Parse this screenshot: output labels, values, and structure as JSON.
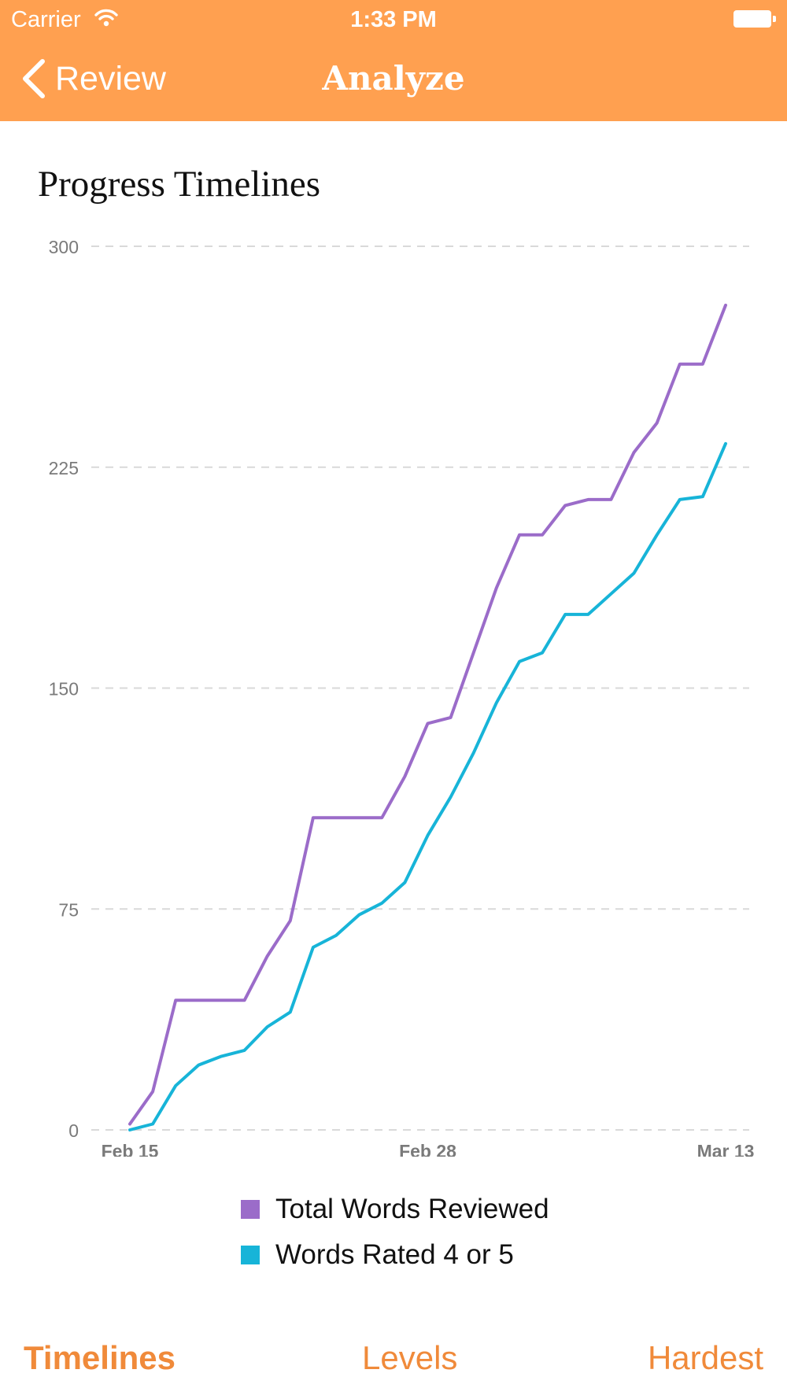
{
  "status_bar": {
    "carrier": "Carrier",
    "time": "1:33 PM"
  },
  "nav": {
    "back_label": "Review",
    "title": "Analyze"
  },
  "section_title": "Progress Timelines",
  "colors": {
    "header_bg": "#ffa050",
    "accent": "#f08a3a",
    "series_total": "#9b6cc9",
    "series_rated": "#17b4d8",
    "grid": "#d9d9d9",
    "axis_text": "#7a7a7a"
  },
  "chart_data": {
    "type": "line",
    "title": "",
    "xlabel": "",
    "ylabel": "",
    "x": [
      "Feb 15",
      "Feb 16",
      "Feb 17",
      "Feb 18",
      "Feb 19",
      "Feb 20",
      "Feb 21",
      "Feb 22",
      "Feb 23",
      "Feb 24",
      "Feb 25",
      "Feb 26",
      "Feb 27",
      "Feb 28",
      "Mar 1",
      "Mar 2",
      "Mar 3",
      "Mar 4",
      "Mar 5",
      "Mar 6",
      "Mar 7",
      "Mar 8",
      "Mar 9",
      "Mar 10",
      "Mar 11",
      "Mar 12",
      "Mar 13"
    ],
    "x_tick_labels": [
      "Feb 15",
      "Feb 28",
      "Mar 13"
    ],
    "y_ticks": [
      "0",
      "75",
      "150",
      "225",
      "300"
    ],
    "ylim": [
      0,
      300
    ],
    "grid": true,
    "legend_placement": "bottom",
    "series": [
      {
        "name": "Total Words Reviewed",
        "values": [
          2,
          13,
          44,
          44,
          44,
          44,
          59,
          71,
          106,
          106,
          106,
          106,
          120,
          138,
          140,
          162,
          184,
          202,
          202,
          212,
          214,
          214,
          230,
          240,
          260,
          260,
          280
        ]
      },
      {
        "name": "Words Rated 4 or 5",
        "values": [
          0,
          2,
          15,
          22,
          25,
          27,
          35,
          40,
          62,
          66,
          73,
          77,
          84,
          100,
          113,
          128,
          145,
          159,
          162,
          175,
          175,
          182,
          189,
          202,
          214,
          215,
          233
        ]
      }
    ]
  },
  "tabs": [
    {
      "label": "Timelines",
      "active": true
    },
    {
      "label": "Levels",
      "active": false
    },
    {
      "label": "Hardest",
      "active": false
    }
  ]
}
